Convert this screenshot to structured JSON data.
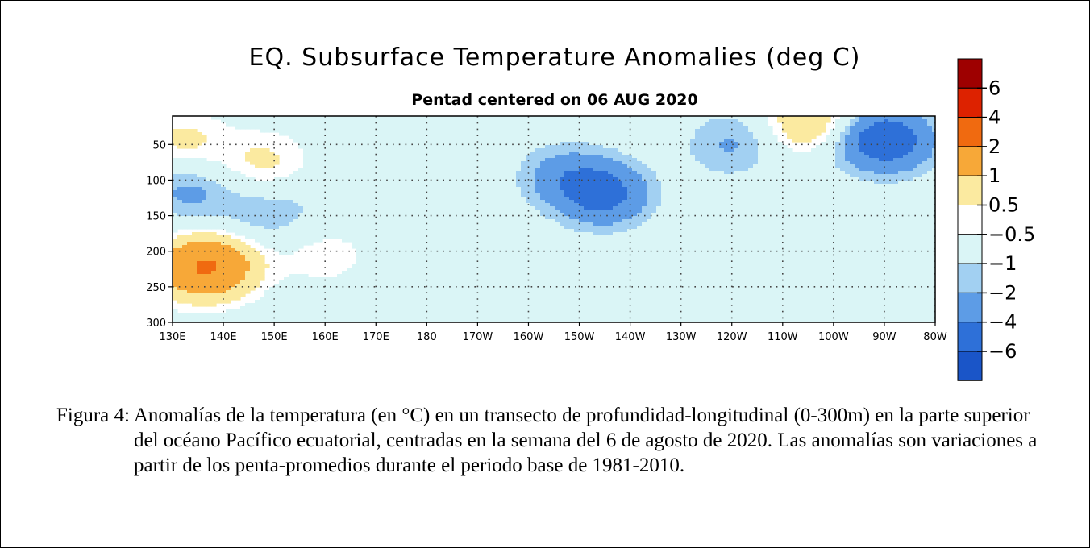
{
  "chart_data": {
    "type": "heatmap",
    "title": "EQ. Subsurface Temperature Anomalies (deg C)",
    "subtitle": "Pentad centered on 06 AUG 2020",
    "x_ticks": [
      "130E",
      "140E",
      "150E",
      "160E",
      "170E",
      "180",
      "170W",
      "160W",
      "150W",
      "140W",
      "130W",
      "120W",
      "110W",
      "100W",
      "90W",
      "80W"
    ],
    "y_ticks": [
      "50",
      "100",
      "150",
      "200",
      "250",
      "300"
    ],
    "x_range_lon_east": [
      130,
      280
    ],
    "y_range_depth_m": [
      10,
      300
    ],
    "y_reversed": true,
    "grid": "dotted",
    "colorbar": {
      "labels": [
        "6",
        "4",
        "2",
        "1",
        "0.5",
        "−0.5",
        "−1",
        "−2",
        "−4",
        "−6"
      ],
      "colors": [
        "#9e0000",
        "#dd2200",
        "#f06a10",
        "#f7a838",
        "#fbeaa0",
        "#ffffff",
        "#daf5f6",
        "#a2d0f2",
        "#5d9ce6",
        "#2e70d8",
        "#1a55c8"
      ]
    },
    "features": [
      {
        "lon": 132,
        "depth": 45,
        "anomaly": 1.2
      },
      {
        "lon": 135,
        "depth": 225,
        "anomaly": 3.0
      },
      {
        "lon": 140,
        "depth": 215,
        "anomaly": 1.6
      },
      {
        "lon": 148,
        "depth": 75,
        "anomaly": 1.2
      },
      {
        "lon": 160,
        "depth": 205,
        "anomaly": 0.8
      },
      {
        "lon": 145,
        "depth": 155,
        "anomaly": -0.6
      },
      {
        "lon": 152,
        "depth": 140,
        "anomaly": -0.6
      },
      {
        "lon": 133,
        "depth": 115,
        "anomaly": -1.2
      },
      {
        "lon": 215,
        "depth": 120,
        "anomaly": -2.3
      },
      {
        "lon": 207,
        "depth": 95,
        "anomaly": -1.3
      },
      {
        "lon": 240,
        "depth": 50,
        "anomaly": -1.1
      },
      {
        "lon": 265,
        "depth": 40,
        "anomaly": -1.5
      },
      {
        "lon": 272,
        "depth": 45,
        "anomaly": -2.1
      },
      {
        "lon": 256,
        "depth": 20,
        "anomaly": 2.2
      }
    ]
  },
  "caption": "Figura 4: Anomalías de la temperatura (en °C) en un transecto de profundidad-longitudinal (0-300m) en la parte superior del océano Pacífico ecuatorial, centradas en la semana del 6 de agosto de 2020. Las anomalías son variaciones a partir de los penta-promedios durante el periodo base de 1981-2010."
}
